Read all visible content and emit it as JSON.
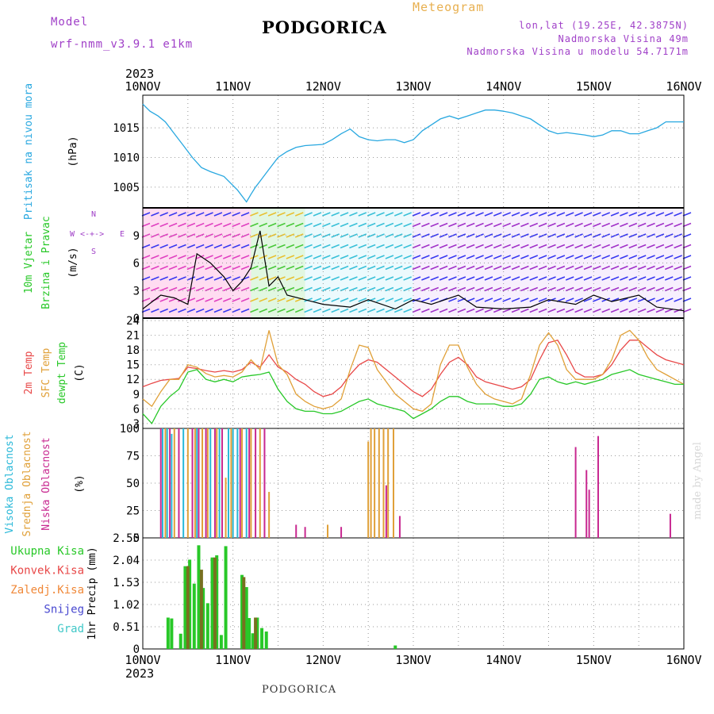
{
  "header": {
    "model_label": "Model",
    "model_name": "wrf-nmm_v3.9.1  e1km",
    "title": "PODGORICA",
    "meteogram": "Meteogram",
    "lonlat": "lon,lat (19.25E, 42.3875N)",
    "elevation": "Nadmorska Visina 49m",
    "model_elevation": "Nadmorska Visina u modelu 54.7171m"
  },
  "footer": {
    "station": "PODGORICA",
    "credit": "made by Angel"
  },
  "colors": {
    "pressure": "#29a8e0",
    "wind_label": "#28c828",
    "temp2m": "#e84848",
    "sfc": "#e0a038",
    "dewpt": "#28c828",
    "high_cloud": "#29b8d8",
    "mid_cloud": "#e0a038",
    "low_cloud": "#c82890",
    "grid": "#999999",
    "snow": "#4848d0",
    "grad": "#40c8c8",
    "conv": "#e84848",
    "frz": "#f08838",
    "compass": "#a040c8"
  },
  "chart_data": [
    {
      "type": "line",
      "panel": "pressure",
      "year_label": "2023",
      "x_ticks": [
        "10NOV",
        "11NOV",
        "12NOV",
        "13NOV",
        "14NOV",
        "15NOV",
        "16NOV"
      ],
      "ylabel_main": "Pritisak na nivou mora",
      "unit": "(hPa)",
      "y_ticks": [
        1005,
        1010,
        1015
      ],
      "ylim": [
        1001.5,
        1020.5
      ],
      "x_days": [
        0,
        0.08,
        0.17,
        0.25,
        0.35,
        0.45,
        0.55,
        0.65,
        0.75,
        0.9,
        1.05,
        1.15,
        1.2,
        1.25,
        1.3,
        1.4,
        1.5,
        1.6,
        1.7,
        1.8,
        2.0,
        2.1,
        2.2,
        2.3,
        2.4,
        2.5,
        2.6,
        2.7,
        2.8,
        2.9,
        3.0,
        3.1,
        3.2,
        3.3,
        3.4,
        3.5,
        3.6,
        3.7,
        3.8,
        3.9,
        4.0,
        4.1,
        4.2,
        4.3,
        4.4,
        4.5,
        4.6,
        4.7,
        4.8,
        4.9,
        5.0,
        5.1,
        5.2,
        5.3,
        5.4,
        5.5,
        5.6,
        5.7,
        5.8,
        5.9,
        6.0
      ],
      "values": [
        1019,
        1017.8,
        1017,
        1016,
        1014,
        1012,
        1010,
        1008.3,
        1007.6,
        1006.8,
        1004.5,
        1002.5,
        1003.8,
        1005,
        1006,
        1008,
        1010,
        1011,
        1011.7,
        1012,
        1012.2,
        1013,
        1014,
        1014.8,
        1013.5,
        1013,
        1012.8,
        1013,
        1013,
        1012.5,
        1013,
        1014.5,
        1015.5,
        1016.5,
        1017,
        1016.5,
        1017,
        1017.5,
        1018,
        1018,
        1017.8,
        1017.5,
        1017,
        1016.5,
        1015.5,
        1014.5,
        1014,
        1014.2,
        1014,
        1013.8,
        1013.5,
        1013.8,
        1014.5,
        1014.5,
        1014,
        1014,
        1014.5,
        1015,
        1016,
        1016,
        1016
      ]
    },
    {
      "type": "line",
      "panel": "wind",
      "ylabel_main": "10m Vjetar",
      "ylabel_sub": "Brzina i Pravac",
      "unit": "(m/s)",
      "compass": {
        "north": "N",
        "west": "W",
        "east": "E",
        "south": "S",
        "arrows": "<-+->"
      },
      "y_ticks": [
        0,
        3,
        6,
        9
      ],
      "ylim": [
        0,
        12
      ],
      "x_days": [
        0,
        0.2,
        0.35,
        0.5,
        0.6,
        0.75,
        0.9,
        1.0,
        1.1,
        1.2,
        1.3,
        1.4,
        1.5,
        1.6,
        1.8,
        2.0,
        2.3,
        2.5,
        2.8,
        3.0,
        3.2,
        3.5,
        3.7,
        4.0,
        4.3,
        4.5,
        4.8,
        5.0,
        5.2,
        5.5,
        5.7,
        6.0
      ],
      "values": [
        1,
        2.5,
        2.2,
        1.5,
        7,
        6,
        4.5,
        3,
        4,
        5.5,
        9.5,
        3.5,
        4.5,
        2.5,
        2,
        1.5,
        1.2,
        2,
        1,
        2,
        1.5,
        2.5,
        1.2,
        1,
        1.2,
        2,
        1.5,
        2.5,
        1.8,
        2.5,
        1.2,
        0.8
      ]
    },
    {
      "type": "line",
      "panel": "temperature",
      "ylabel_series": [
        "2m Temp",
        "SFC Temp",
        "dewpt Temp"
      ],
      "unit": "(C)",
      "y_ticks": [
        3,
        6,
        9,
        12,
        15,
        18,
        21,
        24
      ],
      "ylim": [
        2,
        24.5
      ],
      "series": [
        {
          "name": "2m Temp",
          "x_days": [
            0,
            0.1,
            0.2,
            0.3,
            0.4,
            0.5,
            0.6,
            0.7,
            0.8,
            0.9,
            1.0,
            1.1,
            1.2,
            1.3,
            1.4,
            1.5,
            1.6,
            1.7,
            1.8,
            1.9,
            2.0,
            2.1,
            2.2,
            2.3,
            2.4,
            2.5,
            2.6,
            2.7,
            2.8,
            2.9,
            3.0,
            3.1,
            3.2,
            3.3,
            3.4,
            3.5,
            3.6,
            3.7,
            3.8,
            3.9,
            4.0,
            4.1,
            4.2,
            4.3,
            4.4,
            4.5,
            4.6,
            4.7,
            4.8,
            4.9,
            5.0,
            5.1,
            5.2,
            5.3,
            5.4,
            5.5,
            5.6,
            5.7,
            5.8,
            5.9,
            6.0
          ],
          "values": [
            10.5,
            11.2,
            11.8,
            12,
            12.2,
            14.5,
            14.2,
            13.8,
            13.5,
            13.8,
            13.5,
            14,
            15.5,
            14.5,
            17,
            14.5,
            13.5,
            12,
            11,
            9.5,
            8.5,
            9,
            10.5,
            13,
            15,
            16,
            15.5,
            14,
            12.5,
            11,
            9.5,
            8.5,
            10,
            13,
            15.5,
            16.5,
            15,
            12.5,
            11.5,
            11,
            10.5,
            10,
            10.5,
            12,
            16,
            19.5,
            20,
            17,
            13.5,
            12.5,
            12.5,
            13,
            15,
            18,
            20,
            20,
            18.5,
            17,
            16,
            15.5,
            15
          ]
        },
        {
          "name": "SFC Temp",
          "x_days": [
            0,
            0.1,
            0.2,
            0.3,
            0.4,
            0.5,
            0.6,
            0.7,
            0.8,
            0.9,
            1.0,
            1.1,
            1.2,
            1.3,
            1.4,
            1.5,
            1.6,
            1.7,
            1.8,
            1.9,
            2.0,
            2.1,
            2.2,
            2.3,
            2.4,
            2.5,
            2.6,
            2.7,
            2.8,
            2.9,
            3.0,
            3.1,
            3.2,
            3.3,
            3.4,
            3.5,
            3.6,
            3.7,
            3.8,
            3.9,
            4.0,
            4.1,
            4.2,
            4.3,
            4.4,
            4.5,
            4.6,
            4.7,
            4.8,
            4.9,
            5.0,
            5.1,
            5.2,
            5.3,
            5.4,
            5.5,
            5.6,
            5.7,
            5.8,
            5.9,
            6.0
          ],
          "values": [
            8,
            6.5,
            9.5,
            12,
            12,
            15,
            14.5,
            13.2,
            12.5,
            12.8,
            12.5,
            13.5,
            16,
            14,
            22,
            15,
            13,
            9,
            7.5,
            6.5,
            6,
            6.5,
            8,
            14,
            19,
            18.5,
            14,
            11.5,
            9,
            7.5,
            6,
            5.5,
            7,
            15,
            19,
            19,
            14.5,
            11,
            9,
            8,
            7.5,
            7,
            8,
            13,
            19,
            21.5,
            19,
            14,
            12,
            12,
            12,
            13,
            16,
            21,
            22,
            20,
            16.5,
            14,
            13,
            12,
            11
          ]
        },
        {
          "name": "dewpt Temp",
          "x_days": [
            0,
            0.1,
            0.2,
            0.3,
            0.4,
            0.5,
            0.6,
            0.7,
            0.8,
            0.9,
            1.0,
            1.1,
            1.2,
            1.3,
            1.4,
            1.5,
            1.6,
            1.7,
            1.8,
            1.9,
            2.0,
            2.1,
            2.2,
            2.3,
            2.4,
            2.5,
            2.6,
            2.7,
            2.8,
            2.9,
            3.0,
            3.1,
            3.2,
            3.3,
            3.4,
            3.5,
            3.6,
            3.7,
            3.8,
            3.9,
            4.0,
            4.1,
            4.2,
            4.3,
            4.4,
            4.5,
            4.6,
            4.7,
            4.8,
            4.9,
            5.0,
            5.1,
            5.2,
            5.3,
            5.4,
            5.5,
            5.6,
            5.7,
            5.8,
            5.9,
            6.0
          ],
          "values": [
            5,
            3,
            6.5,
            8.5,
            10,
            13.5,
            14,
            12,
            11.5,
            12,
            11.5,
            12.5,
            12.8,
            13,
            13.5,
            10,
            7.5,
            6,
            5.5,
            5.5,
            5,
            5,
            5.5,
            6.5,
            7.5,
            8,
            7,
            6.5,
            6,
            5.5,
            4,
            5,
            6,
            7.5,
            8.5,
            8.5,
            7.5,
            7,
            7,
            7,
            6.5,
            6.5,
            7,
            9,
            12,
            12.5,
            11.5,
            11,
            11.5,
            11,
            11.5,
            12,
            13,
            13.5,
            14,
            13,
            12.5,
            12,
            11.5,
            11,
            11
          ]
        }
      ]
    },
    {
      "type": "bar",
      "panel": "cloud",
      "ylabel_series": [
        "Visoka Oblacnost",
        "Srednja Oblacnost",
        "Niska Oblacnost"
      ],
      "unit": "(%)",
      "y_ticks": [
        0,
        25,
        50,
        75,
        100
      ],
      "ylim": [
        0,
        100
      ],
      "series": [
        {
          "name": "Visoka Oblacnost",
          "x_days": [
            0.22,
            0.27,
            0.32,
            0.45,
            0.6,
            0.75,
            0.85,
            0.95,
            1.0,
            1.05,
            1.15
          ],
          "values": [
            100,
            100,
            95,
            100,
            100,
            100,
            100,
            100,
            100,
            100,
            100
          ]
        },
        {
          "name": "Srednja Oblacnost",
          "x_days": [
            0.25,
            0.35,
            0.5,
            0.58,
            0.66,
            0.72,
            0.82,
            0.92,
            0.98,
            1.1,
            1.2,
            1.3,
            1.4,
            2.05,
            2.5,
            2.53,
            2.57,
            2.62,
            2.67,
            2.72,
            2.78
          ],
          "values": [
            100,
            100,
            100,
            100,
            100,
            100,
            100,
            55,
            100,
            100,
            100,
            100,
            42,
            12,
            88,
            100,
            100,
            100,
            100,
            100,
            100
          ]
        },
        {
          "name": "Niska Oblacnost",
          "x_days": [
            0.2,
            0.3,
            0.4,
            0.55,
            0.62,
            0.7,
            0.8,
            0.88,
            1.08,
            1.18,
            1.25,
            1.35,
            1.7,
            1.8,
            2.2,
            2.7,
            2.85,
            4.8,
            4.92,
            4.95,
            5.05,
            5.85
          ],
          "values": [
            100,
            100,
            100,
            100,
            100,
            100,
            100,
            100,
            100,
            100,
            100,
            100,
            12,
            10,
            10,
            48,
            20,
            83,
            62,
            44,
            93,
            22
          ]
        }
      ]
    },
    {
      "type": "bar",
      "panel": "precip",
      "year_label": "2023",
      "x_ticks": [
        "10NOV",
        "11NOV",
        "12NOV",
        "13NOV",
        "14NOV",
        "15NOV",
        "16NOV"
      ],
      "ylabel_series": [
        "Ukupna Kisa",
        "Konvek.Kisa",
        "Zaledj.Kisa",
        "Snijeg",
        "Grad"
      ],
      "unit": "1hr Precip (mm)",
      "y_ticks": [
        0,
        0.51,
        1.02,
        1.53,
        2.04,
        2.55
      ],
      "ylim": [
        0,
        2.55
      ],
      "series": [
        {
          "name": "Ukupna Kisa",
          "x_days": [
            0.28,
            0.32,
            0.42,
            0.47,
            0.52,
            0.57,
            0.62,
            0.67,
            0.72,
            0.77,
            0.82,
            0.87,
            0.92,
            1.1,
            1.15,
            1.18,
            1.22,
            1.27,
            1.32,
            1.37,
            2.8
          ],
          "values": [
            0.72,
            0.7,
            0.35,
            1.9,
            2.05,
            1.5,
            2.38,
            1.4,
            1.05,
            2.1,
            2.15,
            0.32,
            2.36,
            1.7,
            1.42,
            0.71,
            0.36,
            0.72,
            0.48,
            0.4,
            0.08
          ]
        },
        {
          "name": "Konvek.Kisa",
          "x_days": [
            0.5,
            0.65,
            0.8,
            1.12,
            1.25
          ],
          "values": [
            1.9,
            1.82,
            2.1,
            1.65,
            0.72
          ]
        }
      ]
    }
  ]
}
